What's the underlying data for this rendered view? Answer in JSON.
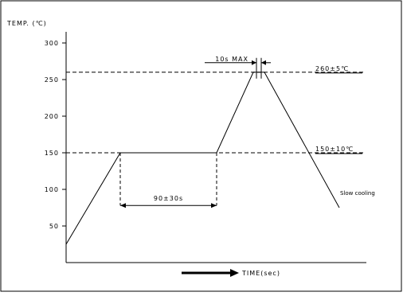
{
  "chart_data": {
    "type": "line",
    "ylabel": "TEMP. (℃)",
    "xlabel": "TIME(sec)",
    "ylim": [
      0,
      310
    ],
    "yticks": [
      50,
      100,
      150,
      200,
      250,
      300
    ],
    "series": [
      {
        "values": [
          {
            "x": 0,
            "y": 25
          },
          {
            "x": 68,
            "y": 150
          },
          {
            "x": 189,
            "y": 150
          },
          {
            "x": 235,
            "y": 260
          },
          {
            "x": 249,
            "y": 260
          },
          {
            "x": 343,
            "y": 75
          }
        ]
      }
    ],
    "reference_lines": [
      {
        "y": 260,
        "label": "260±5℃"
      },
      {
        "y": 150,
        "label": "150±10℃"
      }
    ],
    "annotations": {
      "preheat": "90±30s",
      "peak": "10s MAX",
      "cooling": "Slow cooling"
    },
    "grid": false
  }
}
